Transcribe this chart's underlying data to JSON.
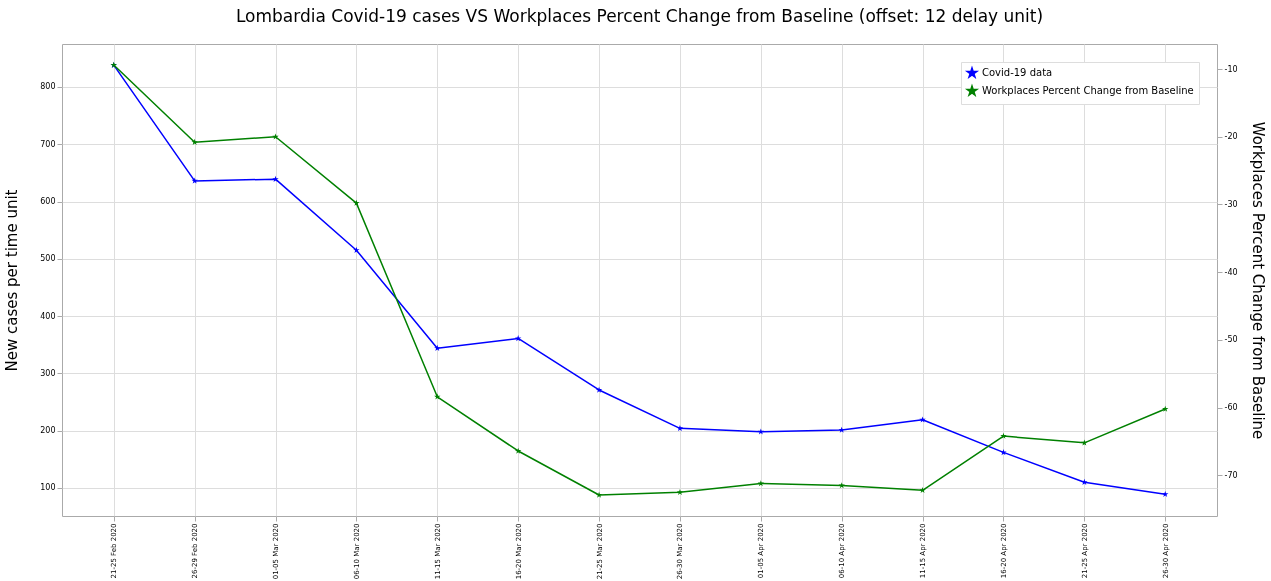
{
  "chart_data": {
    "type": "line",
    "title": "Lombardia Covid-19 cases VS Workplaces Percent Change from Baseline (offset: 12 delay unit)",
    "ylabel": "New cases per time unit",
    "y2label": "Workplaces Percent Change from Baseline",
    "categories": [
      "21-25 Feb 2020",
      "26-29 Feb 2020",
      "01-05 Mar 2020",
      "06-10 Mar 2020",
      "11-15 Mar 2020",
      "16-20 Mar 2020",
      "21-25 Mar 2020",
      "26-30 Mar 2020",
      "01-05 Apr 2020",
      "06-10 Apr 2020",
      "11-15 Apr 2020",
      "16-20 Apr 2020",
      "21-25 Apr 2020",
      "26-30 Apr 2020"
    ],
    "series": [
      {
        "name": "Covid-19 data",
        "color": "#0000ff",
        "values": [
          838,
          636,
          639,
          515,
          344,
          361,
          271,
          204,
          198,
          201,
          219,
          162,
          110,
          89
        ]
      },
      {
        "name": "Workplaces Percent Change from Baseline",
        "color": "#008000",
        "axis": "y2",
        "values": [
          -9.4,
          -20.8,
          -20.0,
          -29.8,
          -58.4,
          -66.4,
          -72.9,
          -72.5,
          -71.2,
          -71.5,
          -72.2,
          -64.2,
          -65.2,
          -60.2
        ]
      }
    ],
    "ylim": [
      51,
      875
    ],
    "yticks": [
      100,
      200,
      300,
      400,
      500,
      600,
      700,
      800
    ],
    "y2lim": [
      -76,
      -6.3
    ],
    "y2ticks": [
      -70,
      -60,
      -50,
      -40,
      -30,
      -20,
      -10
    ],
    "grid": true,
    "legend": "top right",
    "marker": "star",
    "line_style": "solid"
  }
}
